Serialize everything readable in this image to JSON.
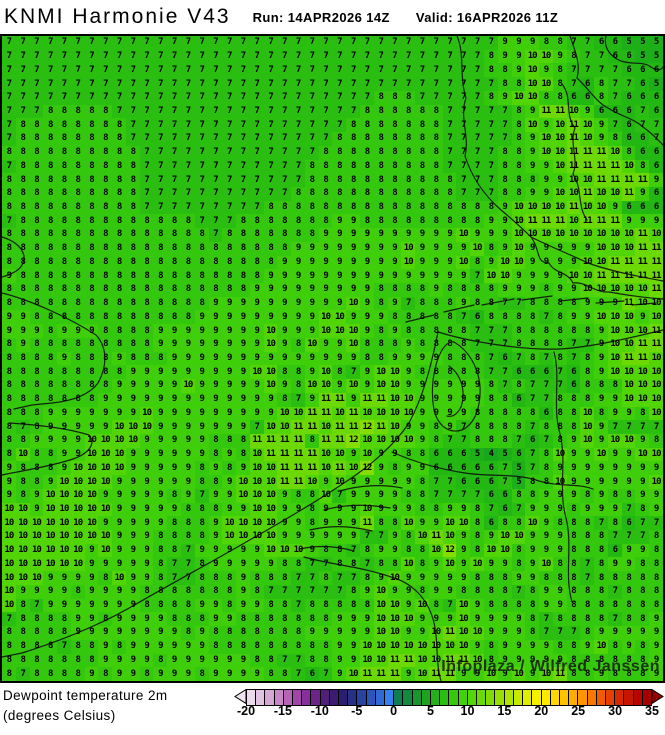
{
  "header": {
    "title": "KNMI Harmonie V43",
    "run": "Run: 14APR2026 14Z",
    "valid": "Valid: 16APR2026 11Z"
  },
  "map": {
    "watermark": "Infoplaza / Wilfred Janssen",
    "grid": {
      "value_colors": {
        "4": "#18a81c",
        "5": "#1daf18",
        "6": "#23b714",
        "7": "#2abf10",
        "8": "#33c70d",
        "9": "#3ecf0a",
        "10": "#52d507",
        "11": "#6cd905",
        "12": "#86dd03"
      },
      "rows": [
        "7 7 7 7 7 7 7 7 7 7 7 7 7 7 7 7 7 7 7 7 7 7 7 7 7 7 7 7 7 7 7 7 7 7 7 7 9 9 9 8 8 7 7 6 6 5 5 5",
        "7 7 7 7 7 7 7 7 7 7 7 7 7 7 7 7 7 7 7 7 7 7 7 7 7 7 7 7 7 7 7 7 7 7 7 8 9 9 10 10 9 8 7 7 6 6 5 5",
        "7 7 7 7 7 7 7 7 7 7 7 7 7 7 7 7 7 7 7 7 7 7 7 7 7 7 7 7 7 7 7 7 7 7 7 8 8 9 10 9 8 7 7 7 7 6 6 6",
        "7 7 7 7 7 7 7 7 7 7 7 7 7 7 7 7 7 7 7 7 7 7 7 7 7 7 7 7 7 7 7 7 7 7 7 7 8 8 10 10 8 7 6 8 7 7 6 5",
        "7 7 7 7 7 7 7 7 7 7 7 7 7 7 7 7 7 7 7 7 7 7 7 7 7 7 7 8 8 8 7 7 7 7 7 8 9 10 10 8 8 6 6 8 7 6 6 6",
        "7 7 7 8 8 8 8 8 7 7 7 7 7 7 7 7 7 7 7 7 7 7 7 7 7 7 8 8 8 8 8 8 7 7 7 7 7 8 9 11 11 10 9 6 6 6 7 6",
        "7 8 8 8 8 8 8 8 8 7 7 7 7 7 7 7 7 7 7 7 7 7 7 7 7 8 8 8 8 8 8 8 7 7 7 7 7 8 10 9 10 11 10 9 7 6 7 7",
        "7 8 8 8 8 8 8 8 8 7 7 7 7 7 7 7 7 7 7 7 7 7 7 7 8 8 8 8 8 8 8 8 7 7 7 7 7 8 9 10 10 11 10 9 8 6 6 7",
        "8 8 8 8 8 8 8 8 8 8 7 7 7 7 7 7 7 7 7 7 7 7 7 8 8 8 8 8 8 8 8 8 7 7 7 7 8 8 9 10 10 11 11 11 10 8 6 6",
        "7 8 8 8 8 8 8 8 8 8 7 7 7 7 7 7 7 7 7 7 7 7 8 8 8 8 8 8 8 8 8 8 7 7 7 7 8 8 9 9 10 11 11 11 11 10 8 6",
        "8 8 8 8 8 8 8 8 8 8 7 7 7 7 7 7 7 7 7 7 7 7 8 8 8 8 8 8 8 8 8 8 8 7 7 7 8 8 8 9 9 10 10 11 11 11 11 9",
        "8 8 8 8 8 8 8 8 8 8 7 7 7 7 7 7 7 7 7 7 7 8 8 8 8 8 8 8 8 8 8 8 8 7 7 7 8 8 9 9 10 10 11 10 10 11 9 6",
        "8 8 8 8 8 8 8 8 8 8 7 7 7 7 7 7 7 7 7 8 8 8 8 8 8 8 8 8 8 8 8 8 8 8 8 8 9 10 10 10 10 11 10 10 9 6 6 6",
        "7 8 8 8 8 8 8 8 8 8 8 8 8 8 7 7 7 8 8 8 8 8 8 8 9 9 8 8 8 8 8 8 8 8 8 9 9 10 11 11 11 10 11 11 11 9 9 9",
        "8 8 8 8 8 8 8 8 8 8 8 8 8 8 8 7 8 8 8 8 8 8 8 9 9 9 9 9 9 9 9 9 9 10 9 9 9 10 10 10 10 10 10 10 10 10 11 10",
        "8 8 8 8 8 8 8 8 8 8 8 8 8 8 8 8 8 8 8 8 8 9 9 9 9 9 9 9 9 10 9 9 9 9 10 8 9 10 9 9 9 9 9 10 10 10 11 11",
        "8 8 8 8 8 8 8 8 8 8 8 8 8 8 8 8 8 8 8 8 9 9 9 9 9 9 9 9 9 10 9 9 9 10 8 9 10 10 9 9 9 9 10 10 11 11 11 11",
        "9 8 8 8 8 8 8 8 8 8 8 8 8 8 8 8 8 8 8 9 9 9 9 9 9 9 9 9 9 9 9 9 9 9 7 10 10 9 9 9 9 10 10 11 11 11 11 11",
        "8 8 8 8 8 8 8 8 8 8 8 8 8 8 8 8 8 8 9 9 9 9 9 9 9 9 9 8 8 8 8 9 8 8 8 8 9 9 9 8 9 9 10 10 10 10 10 11",
        "8 8 8 8 8 8 8 8 8 8 8 8 8 8 8 9 9 9 9 9 9 9 9 9 9 10 9 8 9 7 8 8 8 9 8 8 7 7 8 8 8 8 9 9 9 11 10 10",
        "9 9 8 8 8 8 8 8 8 8 8 8 8 8 9 9 9 9 9 9 9 9 9 10 10 9 9 9 8 8 8 8 8 7 6 8 8 8 8 7 8 9 9 10 10 10 9 10",
        "9 9 9 8 9 9 9 8 8 8 8 9 9 9 9 9 9 9 9 10 9 9 9 10 10 10 9 8 9 8 8 8 8 8 7 7 7 8 8 8 8 8 8 9 10 10 10 11",
        "8 9 8 8 8 8 8 8 8 8 8 9 9 9 9 9 9 9 9 10 9 8 10 9 9 10 8 8 8 9 8 8 8 8 7 7 7 8 8 8 8 7 7 9 10 10 11 11",
        "8 8 8 8 9 8 8 8 9 8 8 8 9 9 9 9 9 9 9 9 9 9 9 9 9 9 8 8 9 9 9 9 8 8 8 7 6 7 8 7 8 7 8 9 10 11 11 10",
        "8 8 8 8 8 8 8 8 8 9 9 9 9 9 9 9 9 9 10 10 8 8 9 10 8 7 9 10 10 9 8 8 8 8 8 7 7 6 6 6 7 6 8 9 10 10 10 10",
        "8 8 8 8 8 8 8 8 9 9 9 9 9 10 9 9 9 9 9 10 9 8 10 10 9 10 9 10 10 9 9 9 9 9 9 8 7 8 7 7 7 6 8 8 8 10 10 10",
        "8 8 8 8 8 8 8 9 9 9 9 9 9 9 9 9 9 9 9 9 8 7 9 11 11 9 11 11 10 10 9 9 9 9 9 8 8 6 7 7 8 8 8 9 9 10 10 10",
        "8 8 8 9 9 9 9 9 9 9 10 9 9 9 9 9 9 9 9 9 10 10 11 11 10 11 10 10 10 10 9 9 9 9 8 8 8 8 8 6 8 8 10 8 9 9 8 10",
        "8 7 8 9 9 9 9 9 10 10 10 9 9 9 9 9 9 9 7 10 10 11 11 10 11 11 12 11 10 9 9 8 9 7 8 8 8 8 7 8 8 8 10 9 7 7 7 7",
        "8 8 9 9 9 9 10 10 10 10 9 9 9 9 9 8 8 8 11 11 11 11 8 11 11 12 10 10 10 10 9 8 7 7 8 8 8 7 6 7 8 9 10 9 10 10 9 8",
        "8 10 8 8 9 9 10 10 10 9 9 9 9 9 9 8 9 8 10 11 11 11 11 10 10 9 10 9 9 8 8 6 6 6 5 4 5 6 7 8 10 9 9 10 9 9 10 10",
        "9 8 8 8 9 10 10 10 10 9 9 9 9 9 8 9 8 9 10 10 11 11 11 10 11 10 12 9 8 9 9 6 6 6 6 6 7 5 7 8 9 9 9 9 9 9 9 9",
        "9 8 8 9 10 10 10 10 9 9 9 9 9 9 8 8 9 10 10 10 11 11 10 9 10 9 9 9 9 9 8 7 7 6 6 6 7 5 8 8 10 9 9 9 9 9 9 10",
        "9 8 9 10 10 10 10 9 9 9 9 9 8 9 7 9 9 10 10 10 9 8 8 10 7 9 9 9 9 8 8 7 7 7 7 6 6 8 8 9 9 9 8 9 8 8 9 9",
        "10 10 9 10 10 10 10 10 9 9 9 9 9 8 8 8 9 9 10 10 9 9 8 9 9 9 10 9 9 9 8 8 9 9 8 7 6 7 9 9 9 8 9 9 9 7 8 9",
        "10 10 10 10 10 10 10 9 9 9 9 9 8 8 8 9 10 10 10 10 9 9 8 9 9 9 11 8 8 10 9 9 10 10 8 6 8 8 10 9 8 8 8 7 8 6 7 7",
        "10 10 10 10 10 10 10 10 9 9 9 8 8 8 8 9 10 10 10 10 9 9 9 9 9 9 7 7 9 8 10 11 10 9 8 9 10 10 9 9 9 8 8 8 7 7 7 8",
        "10 10 10 10 10 10 9 10 9 9 9 8 8 7 9 9 9 9 9 10 10 10 9 8 8 7 8 9 9 8 8 10 12 9 8 10 10 8 9 9 9 8 8 8 6 9 9 8",
        "10 10 10 10 10 10 9 9 9 9 9 8 7 7 8 9 9 9 9 9 8 8 7 7 8 8 7 8 8 10 8 9 10 9 10 9 9 8 9 10 8 8 7 8 9 9 8 8",
        "10 10 10 9 9 9 9 8 10 9 9 8 7 7 8 8 8 9 8 8 8 7 7 8 7 7 8 9 10 9 9 9 9 9 8 8 8 9 9 8 8 8 7 8 8 8 8 8",
        "10 9 9 9 9 8 9 9 9 9 8 8 8 8 8 8 8 9 8 7 7 7 7 7 7 8 9 10 9 9 8 9 9 8 8 8 8 7 8 9 9 8 8 8 7 8 8 8",
        "10 8 7 9 9 9 9 9 9 9 8 8 8 8 9 9 8 9 9 8 8 7 8 8 8 8 8 10 10 9 10 8 7 10 9 8 8 8 8 9 9 8 8 8 8 8 8 8",
        "7 8 8 8 8 9 9 8 9 9 9 9 8 8 8 9 9 8 8 8 8 8 8 8 9 9 9 10 10 10 9 9 9 10 9 9 9 9 8 7 8 8 8 8 7 8 8 9",
        "8 8 8 8 8 9 9 9 9 9 9 9 9 8 9 8 8 8 8 8 8 8 9 9 9 9 9 10 10 9 9 10 11 10 10 9 9 9 8 7 7 7 8 9 9 9 9 9",
        "8 8 8 8 7 8 8 9 8 9 9 9 9 9 9 8 8 8 8 8 8 8 8 8 9 9 10 10 10 10 10 10 10 10 9 8 9 9 9 9 8 8 9 10 8 9 8 9",
        "8 8 8 8 8 8 8 9 9 9 9 8 9 9 9 9 9 9 8 8 7 7 8 8 9 9 10 10 11 11 10 10 11 11 10 8 9 9 9 9 9 8 8 8 8 8 8 9",
        "8 7 8 8 8 8 9 8 9 9 8 9 9 9 8 9 9 9 9 8 8 7 6 7 9 10 11 11 11 9 10 11 11 9 9 10 9 10 9 10 11 8 8 9 8 8 8 9"
      ]
    }
  },
  "legend": {
    "line1": "Dewpoint temperature 2m",
    "line2": "(degrees Celsius)",
    "colorbar": {
      "left_arrow_color": "#f0e2f0",
      "right_arrow_color": "#990000",
      "cells": [
        "#ecdaec",
        "#e2c2e2",
        "#d6a6d6",
        "#c886c8",
        "#b763b7",
        "#a244a8",
        "#872f9a",
        "#6b2589",
        "#511e79",
        "#3c1c6e",
        "#2b1d6f",
        "#263084",
        "#29429f",
        "#2c55bb",
        "#2f69d6",
        "#3382f2",
        "#0f7e52",
        "#13893f",
        "#18952e",
        "#1ea321",
        "#25b019",
        "#2cbd12",
        "#35c90d",
        "#41d309",
        "#52d807",
        "#68da05",
        "#80dd04",
        "#99e002",
        "#b1e401",
        "#c9e900",
        "#e0ed00",
        "#f4f000",
        "#ffea00",
        "#ffd800",
        "#ffc300",
        "#ffac00",
        "#ff9300",
        "#fa7700",
        "#f25a00",
        "#e74000",
        "#d92800",
        "#c91400",
        "#b70600",
        "#a60000"
      ],
      "ticks": [
        "-20",
        "-15",
        "-10",
        "-5",
        "0",
        "5",
        "10",
        "15",
        "20",
        "25",
        "30",
        "35"
      ]
    }
  }
}
